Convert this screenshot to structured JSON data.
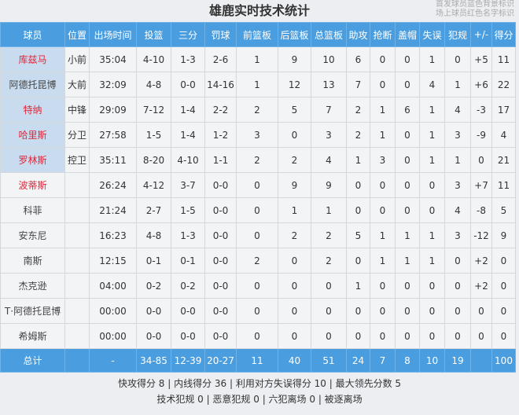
{
  "title": "雄鹿实时技术统计",
  "legend": [
    "首发球员蓝色背景标识",
    "场上球员红色名字标识"
  ],
  "headers": [
    "球员",
    "位置",
    "出场时间",
    "投篮",
    "三分",
    "罚球",
    "前篮板",
    "后篮板",
    "总篮板",
    "助攻",
    "抢断",
    "盖帽",
    "失误",
    "犯规",
    "+/-",
    "得分"
  ],
  "players": [
    {
      "name": "库兹马",
      "starter": true,
      "on_court": true,
      "stats": [
        "小前",
        "35:04",
        "4-10",
        "1-3",
        "2-6",
        "1",
        "9",
        "10",
        "6",
        "0",
        "0",
        "1",
        "0",
        "+5",
        "11"
      ]
    },
    {
      "name": "阿德托昆博",
      "starter": true,
      "on_court": false,
      "stats": [
        "大前",
        "32:09",
        "4-8",
        "0-0",
        "14-16",
        "1",
        "12",
        "13",
        "7",
        "0",
        "0",
        "4",
        "1",
        "+6",
        "22"
      ]
    },
    {
      "name": "特纳",
      "starter": true,
      "on_court": true,
      "stats": [
        "中锋",
        "29:09",
        "7-12",
        "1-4",
        "2-2",
        "2",
        "5",
        "7",
        "2",
        "1",
        "6",
        "1",
        "4",
        "-3",
        "17"
      ]
    },
    {
      "name": "哈里斯",
      "starter": true,
      "on_court": true,
      "stats": [
        "分卫",
        "27:58",
        "1-5",
        "1-4",
        "1-2",
        "3",
        "0",
        "3",
        "2",
        "1",
        "0",
        "1",
        "3",
        "-9",
        "4"
      ]
    },
    {
      "name": "罗林斯",
      "starter": true,
      "on_court": true,
      "stats": [
        "控卫",
        "35:11",
        "8-20",
        "4-10",
        "1-1",
        "2",
        "2",
        "4",
        "1",
        "3",
        "0",
        "1",
        "1",
        "0",
        "21"
      ]
    },
    {
      "name": "波蒂斯",
      "starter": false,
      "on_court": true,
      "stats": [
        "",
        "26:24",
        "4-12",
        "3-7",
        "0-0",
        "0",
        "9",
        "9",
        "0",
        "0",
        "0",
        "0",
        "3",
        "+7",
        "11"
      ]
    },
    {
      "name": "科菲",
      "starter": false,
      "on_court": false,
      "stats": [
        "",
        "21:24",
        "2-7",
        "1-5",
        "0-0",
        "0",
        "1",
        "1",
        "0",
        "0",
        "0",
        "0",
        "4",
        "-8",
        "5"
      ]
    },
    {
      "name": "安东尼",
      "starter": false,
      "on_court": false,
      "stats": [
        "",
        "16:23",
        "4-8",
        "1-3",
        "0-0",
        "0",
        "2",
        "2",
        "5",
        "1",
        "1",
        "1",
        "3",
        "-12",
        "9"
      ]
    },
    {
      "name": "南斯",
      "starter": false,
      "on_court": false,
      "stats": [
        "",
        "12:15",
        "0-1",
        "0-1",
        "0-0",
        "2",
        "0",
        "2",
        "0",
        "1",
        "1",
        "1",
        "0",
        "+2",
        "0"
      ]
    },
    {
      "name": "杰克逊",
      "starter": false,
      "on_court": false,
      "stats": [
        "",
        "04:00",
        "0-2",
        "0-2",
        "0-0",
        "0",
        "0",
        "0",
        "1",
        "0",
        "0",
        "0",
        "0",
        "+2",
        "0"
      ]
    },
    {
      "name": "T·阿德托昆博",
      "starter": false,
      "on_court": false,
      "stats": [
        "",
        "00:00",
        "0-0",
        "0-0",
        "0-0",
        "0",
        "0",
        "0",
        "0",
        "0",
        "0",
        "0",
        "0",
        "0",
        "0"
      ]
    },
    {
      "name": "希姆斯",
      "starter": false,
      "on_court": false,
      "stats": [
        "",
        "00:00",
        "0-0",
        "0-0",
        "0-0",
        "0",
        "0",
        "0",
        "0",
        "0",
        "0",
        "0",
        "0",
        "0",
        "0"
      ]
    }
  ],
  "total": [
    "总计",
    "",
    "-",
    "34-85",
    "12-39",
    "20-27",
    "11",
    "40",
    "51",
    "24",
    "7",
    "8",
    "10",
    "19",
    "",
    "100"
  ],
  "footer": [
    "快攻得分 8 | 内线得分 36 | 利用对方失误得分 10 | 最大领先分数 5",
    "技术犯规 0 | 恶意犯规 0 | 六犯离场 0 | 被逐离场"
  ],
  "colors": {
    "header": "#4a9ee0",
    "starter_bg": "#c9dcef",
    "on_court_name": "#e0263a"
  }
}
